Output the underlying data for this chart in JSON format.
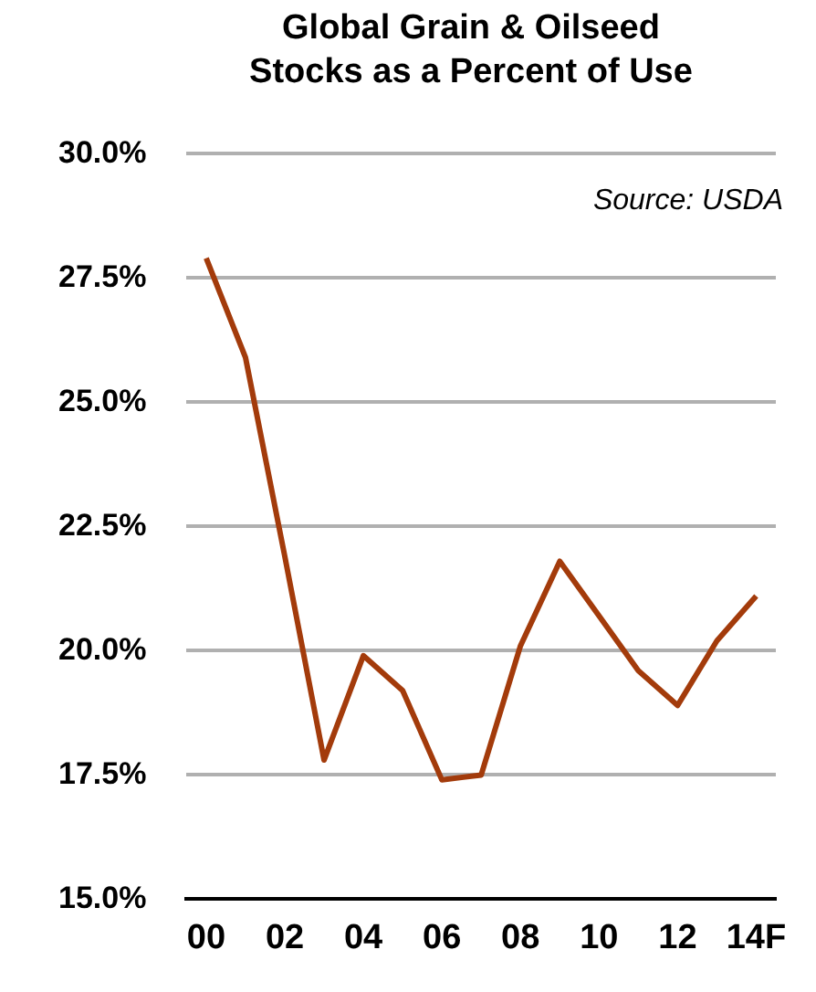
{
  "chart_data": {
    "type": "line",
    "title": "Global Grain & Oilseed Stocks as a Percent of Use",
    "categories": [
      "00",
      null,
      "02",
      null,
      "04",
      null,
      "06",
      null,
      "08",
      null,
      "10",
      null,
      "12",
      null,
      "14F"
    ],
    "series": [
      {
        "color": "#a33b0b",
        "values": [
          27.9,
          25.9,
          21.9,
          17.8,
          19.9,
          19.2,
          17.4,
          17.5,
          20.1,
          21.8,
          20.7,
          19.6,
          18.9,
          20.2,
          21.1
        ]
      }
    ],
    "ylim": [
      15,
      30
    ],
    "yticks": [
      {
        "value": 15,
        "label": "15.0%"
      },
      {
        "value": 17.5,
        "label": "17.5%"
      },
      {
        "value": 20,
        "label": "20.0%"
      },
      {
        "value": 22.5,
        "label": "22.5%"
      },
      {
        "value": 25,
        "label": "25.0%"
      },
      {
        "value": 27.5,
        "label": "27.5%"
      },
      {
        "value": 30,
        "label": "30.0%"
      }
    ],
    "grid": "y",
    "marker": "none",
    "line_style": "solid",
    "legend": false,
    "annotations": [
      "Source: USDA"
    ]
  }
}
